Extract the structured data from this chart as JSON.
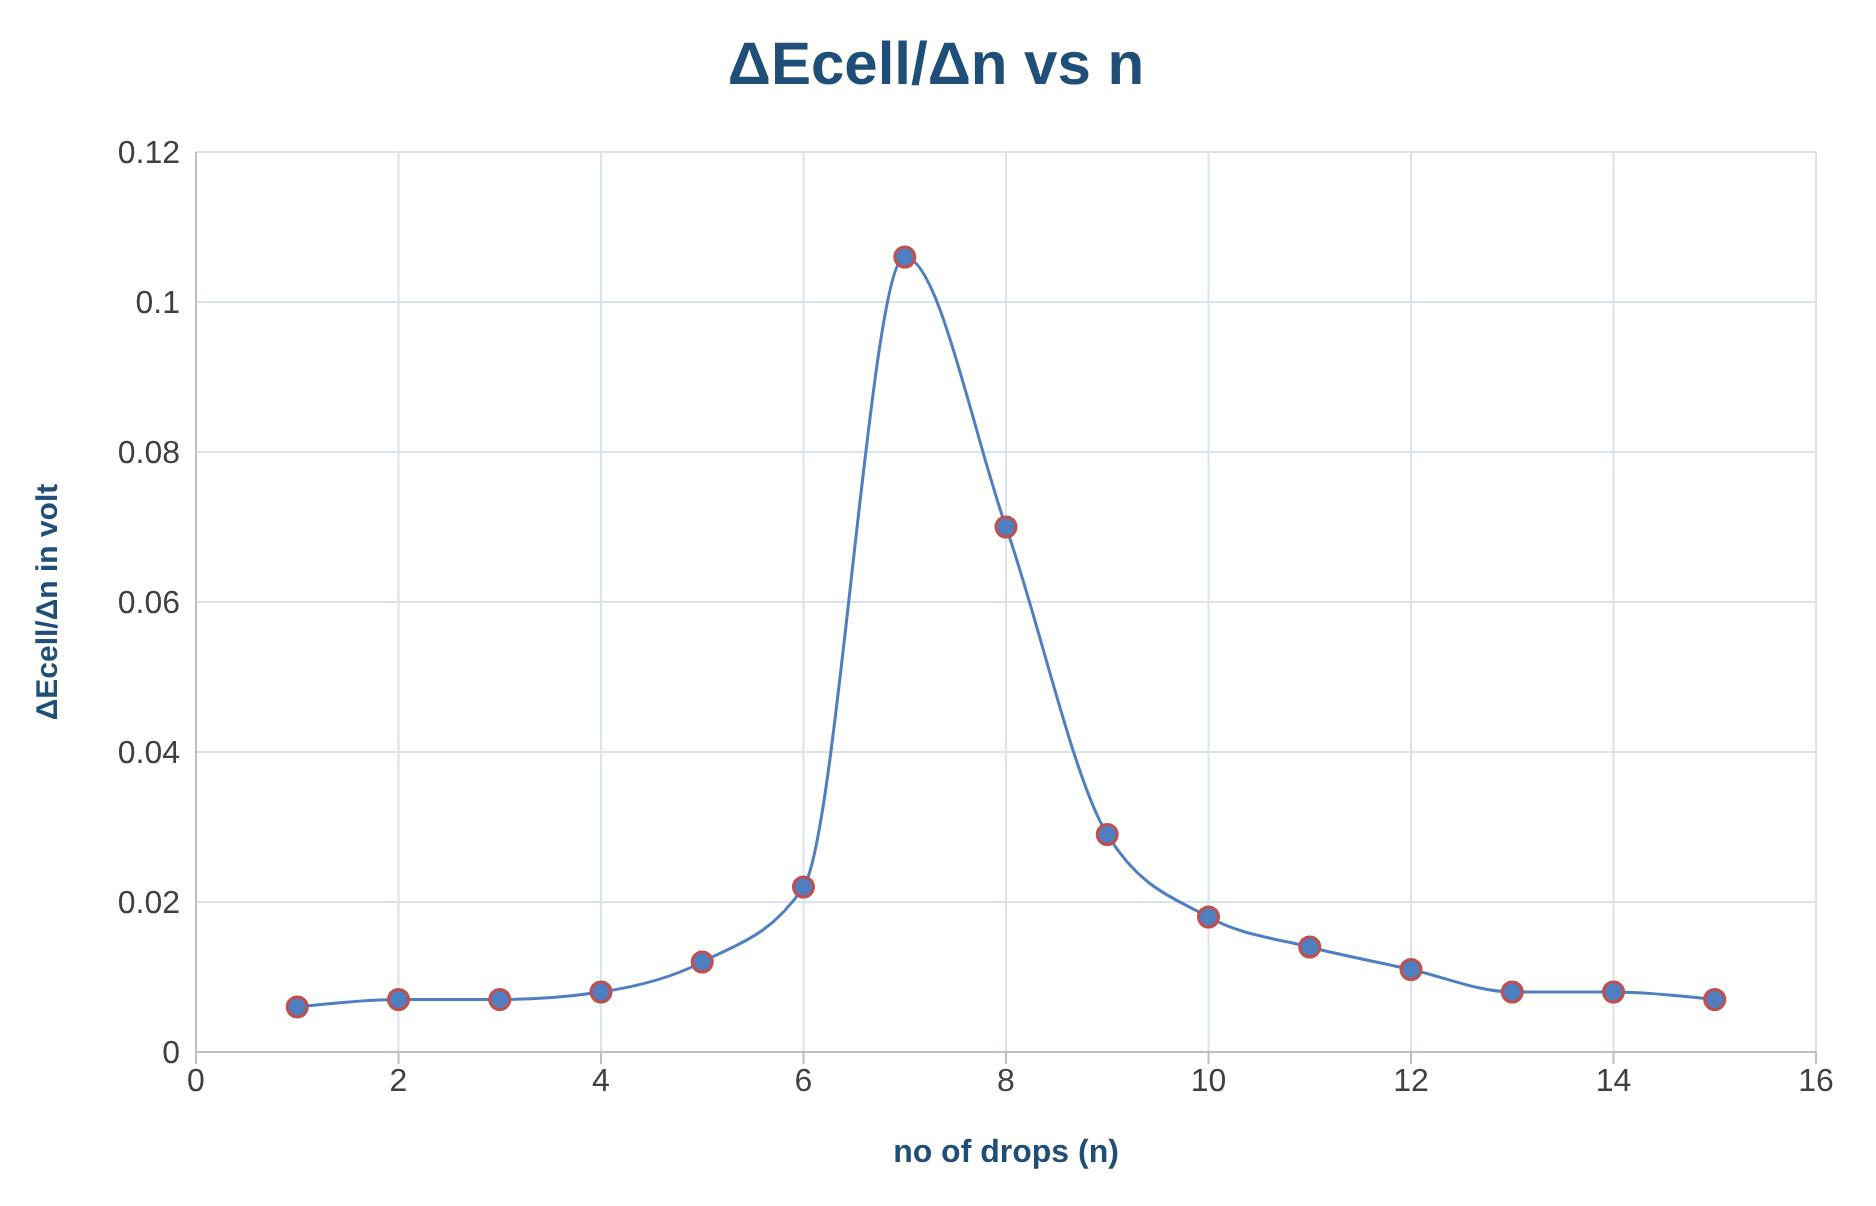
{
  "chart_data": {
    "type": "line",
    "title": "ΔEcell/Δn vs n",
    "xlabel": "no of drops (n)",
    "ylabel": "ΔEcell/Δn in volt",
    "x": [
      1,
      2,
      3,
      4,
      5,
      6,
      7,
      8,
      9,
      10,
      11,
      12,
      13,
      14,
      15
    ],
    "series": [
      {
        "color": "#4f7fc0",
        "values": [
          0.006,
          0.007,
          0.007,
          0.008,
          0.012,
          0.022,
          0.106,
          0.07,
          0.029,
          0.018,
          0.014,
          0.011,
          0.008,
          0.008,
          0.007
        ]
      }
    ],
    "xlim": [
      0,
      16
    ],
    "xticks": [
      0,
      2,
      4,
      6,
      8,
      10,
      12,
      14,
      16
    ],
    "ylim": [
      0,
      0.12
    ],
    "yticks": [
      0,
      0.02,
      0.04,
      0.06,
      0.08,
      0.1,
      0.12
    ],
    "grid": true,
    "marker": "circle",
    "line_style": "solid",
    "legend": false
  }
}
